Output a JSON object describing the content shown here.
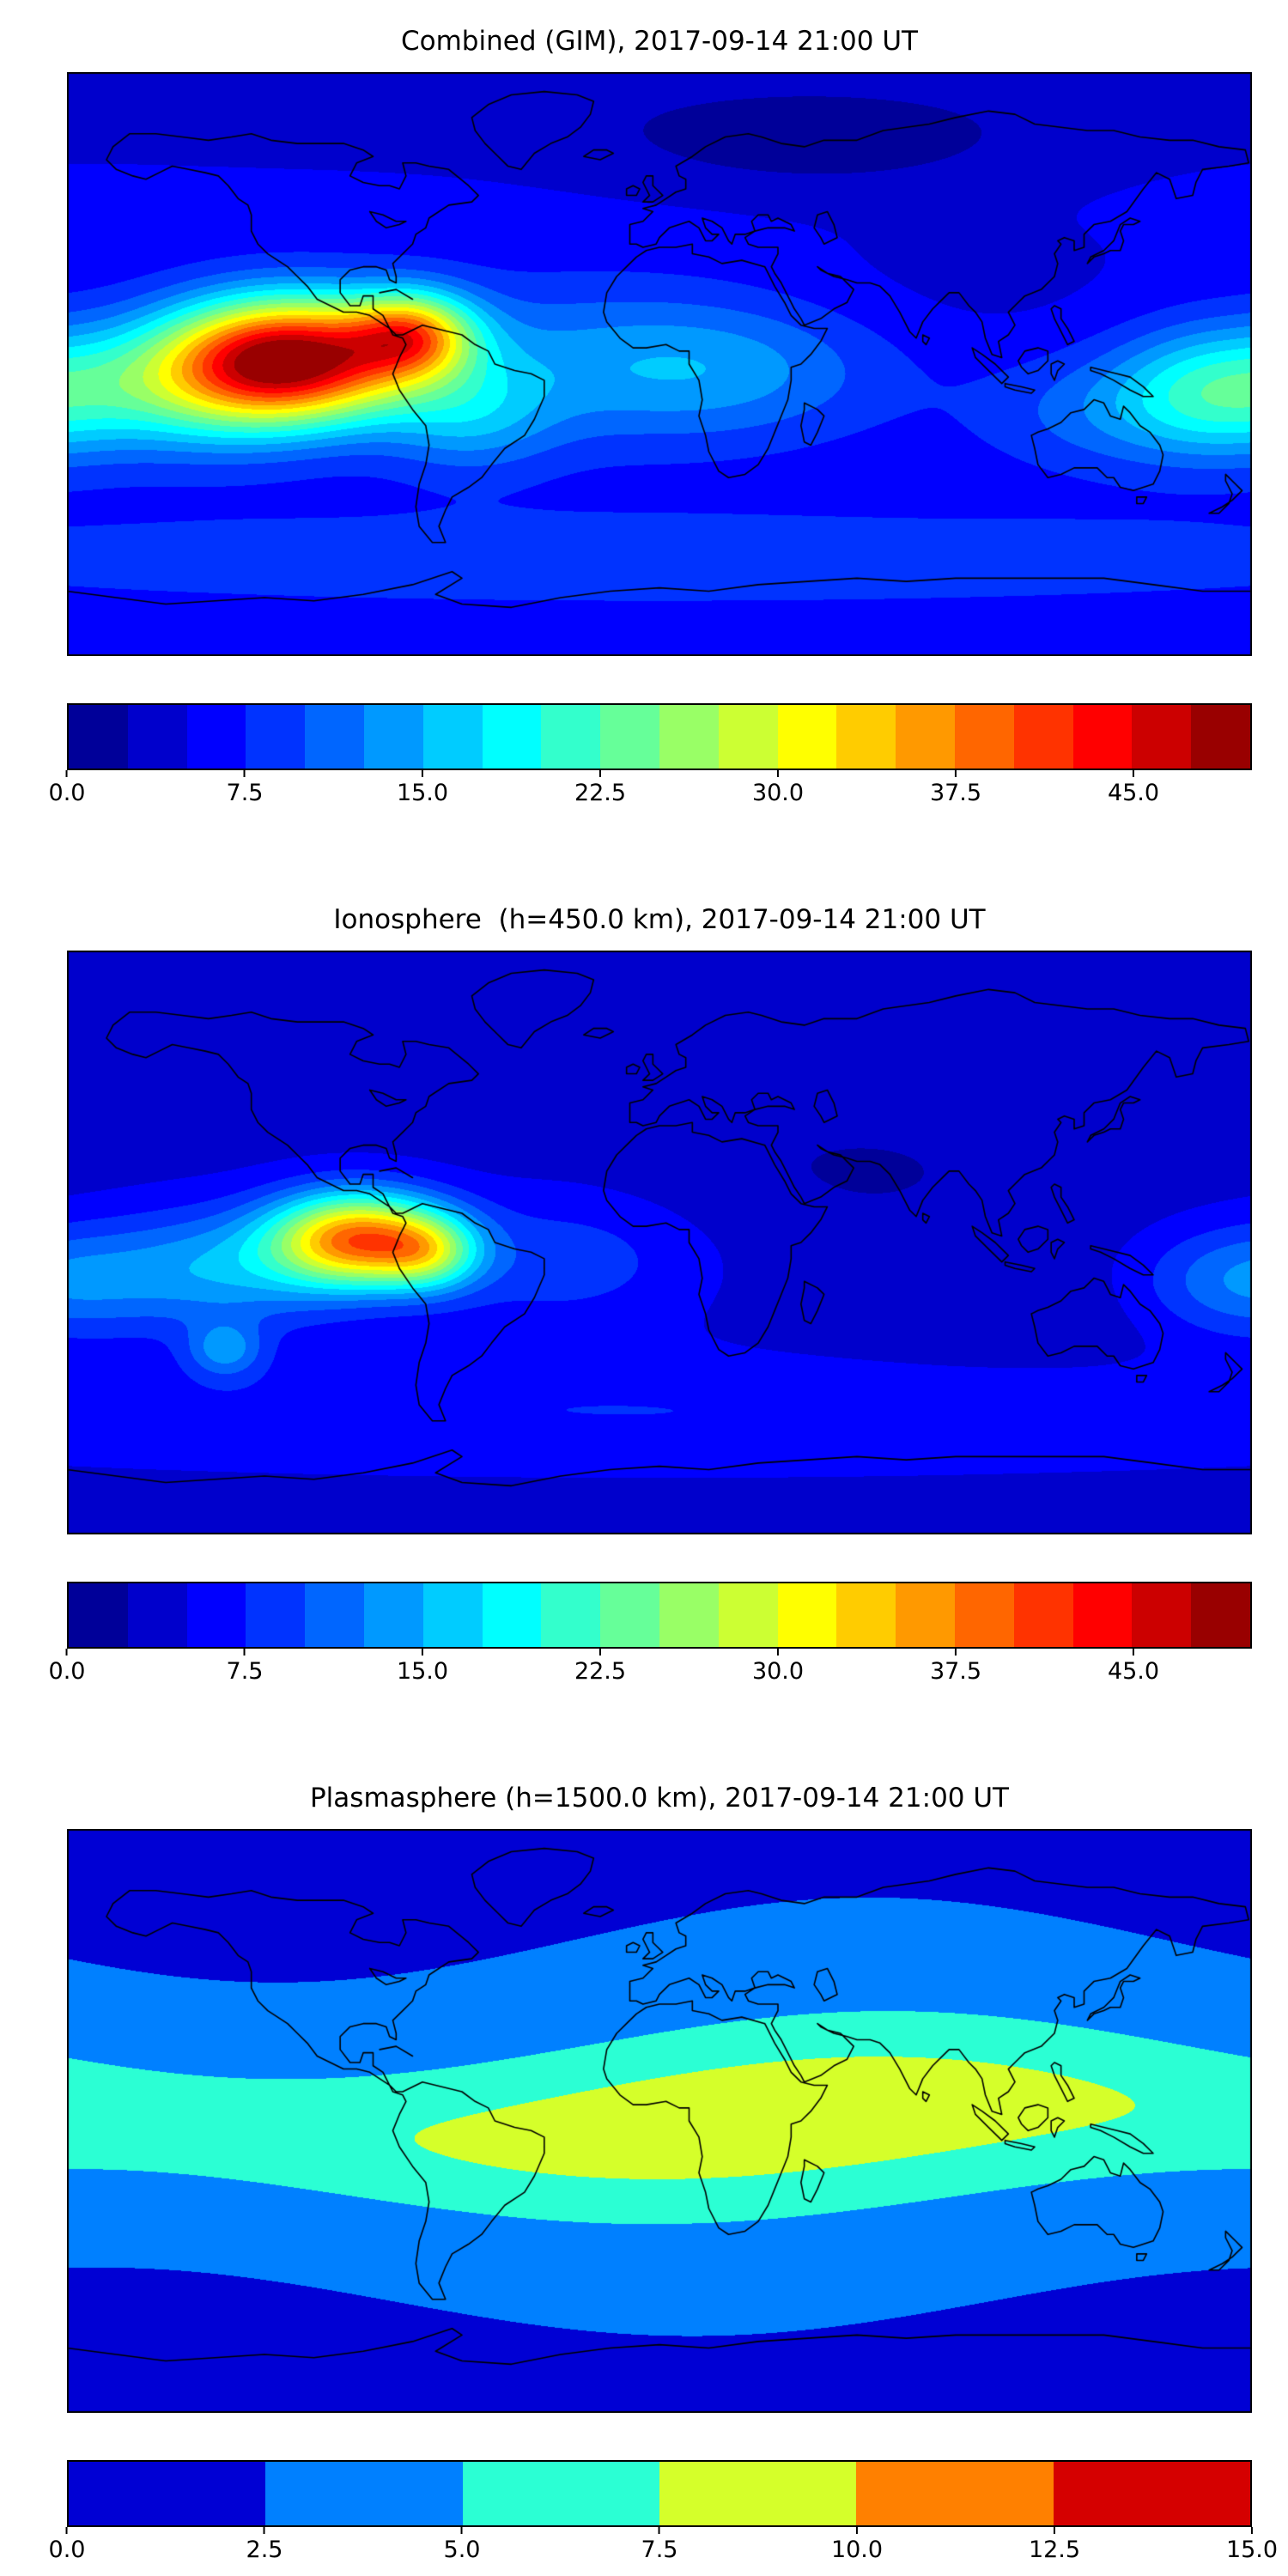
{
  "page": {
    "background": "#ffffff",
    "text_color": "#000000"
  },
  "chart_data": [
    {
      "type": "filled-contour-map",
      "title": "Combined (GIM), 2017-09-14 21:00 UT",
      "datetime": "2017-09-14 21:00 UT",
      "layer": "Combined (GIM)",
      "colormap": "jet",
      "projection": "equirectangular",
      "lon_range": [
        -180,
        180
      ],
      "lat_range": [
        -90,
        90
      ],
      "coastlines": true,
      "colorbar": {
        "orientation": "horizontal",
        "vmin": 0,
        "vmax": 50,
        "bins": 20,
        "level_step": 2.5,
        "tick_values": [
          0,
          7.5,
          15,
          22.5,
          30,
          37.5,
          45
        ],
        "tick_labels": [
          "0.0",
          "7.5",
          "15.0",
          "22.5",
          "30.0",
          "37.5",
          "45.0"
        ]
      },
      "description": "Global combined TEC map. Peak value ~48-50 (dark red) over the eastern equatorial Pacific near 112W 2N, orange-red secondary near 75W 9N over NW South America, yellow-green plume spanning roughly 160W-60W around the equator, cyan patches over the equatorial Atlantic and Africa, green enhancement at the far western Pacific edge, dark blue minimum over high northern latitudes.",
      "field": {
        "base": 5.5,
        "blobs": [
          {
            "lon": -112,
            "lat": 2,
            "amp": 40,
            "slon": 26,
            "slat": 13
          },
          {
            "lon": -75,
            "lat": 9,
            "amp": 22,
            "slon": 13,
            "slat": 9
          },
          {
            "lon": -140,
            "lat": -8,
            "amp": 12,
            "slon": 28,
            "slat": 14
          },
          {
            "lon": -58,
            "lat": -16,
            "amp": 7,
            "slon": 18,
            "slat": 12
          },
          {
            "lon": -30,
            "lat": 0,
            "amp": 6,
            "slon": 45,
            "slat": 18
          },
          {
            "lon": 22,
            "lat": -2,
            "amp": 6,
            "slon": 35,
            "slat": 15
          },
          {
            "lon": 170,
            "lat": -8,
            "amp": 13,
            "slon": 22,
            "slat": 14
          },
          {
            "lon": 135,
            "lat": -15,
            "amp": 5,
            "slon": 28,
            "slat": 13
          },
          {
            "lon": 48,
            "lat": 68,
            "amp": -3.5,
            "slon": 45,
            "slat": 11
          },
          {
            "lon": 0,
            "lat": -60,
            "amp": 4,
            "slon": 200,
            "slat": 11
          },
          {
            "lon": 0,
            "lat": 80,
            "amp": -1.6,
            "slon": 200,
            "slat": 14
          },
          {
            "lon": 90,
            "lat": 25,
            "amp": -1.2,
            "slon": 40,
            "slat": 16
          }
        ]
      }
    },
    {
      "type": "filled-contour-map",
      "title": "Ionosphere  (h=450.0 km), 2017-09-14 21:00 UT",
      "datetime": "2017-09-14 21:00 UT",
      "layer": "Ionosphere (h=450.0 km)",
      "colormap": "jet",
      "projection": "equirectangular",
      "lon_range": [
        -180,
        180
      ],
      "lat_range": [
        -90,
        90
      ],
      "coastlines": true,
      "colorbar": {
        "orientation": "horizontal",
        "vmin": 0,
        "vmax": 50,
        "bins": 20,
        "level_step": 2.5,
        "tick_values": [
          0,
          7.5,
          15,
          22.5,
          30,
          37.5,
          45
        ],
        "tick_labels": [
          "0.0",
          "7.5",
          "15.0",
          "22.5",
          "30.0",
          "37.5",
          "45.0"
        ]
      },
      "description": "Ionospheric TEC at 450 km. Compact orange-red maximum ~36-39 near 92W on the equator just west of South America with yellow ring, cyan-green halo extending west across the equatorial Pacific, small isolated cyan spot near 132W 33S, very dark blue (night-side) minimum ~2-4 over Asia and the Indian Ocean, slightly lighter blue band along southern mid-latitudes.",
      "field": {
        "base": 4,
        "blobs": [
          {
            "lon": -92,
            "lat": 1,
            "amp": 32,
            "slon": 18,
            "slat": 10
          },
          {
            "lon": -70,
            "lat": -3,
            "amp": 14,
            "slon": 11,
            "slat": 8
          },
          {
            "lon": -133,
            "lat": -8,
            "amp": 10,
            "slon": 26,
            "slat": 13
          },
          {
            "lon": 176,
            "lat": -12,
            "amp": 8,
            "slon": 22,
            "slat": 12
          },
          {
            "lon": -30,
            "lat": -5,
            "amp": 5,
            "slon": 32,
            "slat": 15
          },
          {
            "lon": -132,
            "lat": -33,
            "amp": 8,
            "slon": 8,
            "slat": 6
          },
          {
            "lon": 0,
            "lat": -52,
            "amp": 3.5,
            "slon": 200,
            "slat": 13
          },
          {
            "lon": 60,
            "lat": 22,
            "amp": -1.6,
            "slon": 55,
            "slat": 20
          },
          {
            "lon": 105,
            "lat": -25,
            "amp": -1.2,
            "slon": 45,
            "slat": 15
          },
          {
            "lon": 0,
            "lat": 82,
            "amp": -1.2,
            "slon": 200,
            "slat": 14
          }
        ]
      }
    },
    {
      "type": "filled-contour-map",
      "title": "Plasmasphere (h=1500.0 km), 2017-09-14 21:00 UT",
      "datetime": "2017-09-14 21:00 UT",
      "layer": "Plasmasphere (h=1500.0 km)",
      "colormap": "jet",
      "projection": "equirectangular",
      "lon_range": [
        -180,
        180
      ],
      "lat_range": [
        -90,
        90
      ],
      "coastlines": true,
      "colorbar": {
        "orientation": "horizontal",
        "vmin": 0,
        "vmax": 15,
        "bins": 6,
        "level_step": 2.5,
        "tick_values": [
          0,
          2.5,
          5,
          7.5,
          10,
          12.5,
          15
        ],
        "tick_labels": [
          "0.0",
          "2.5",
          "5.0",
          "7.5",
          "10.0",
          "12.5",
          "15.0"
        ]
      },
      "description": "Plasmaspheric TEC at 1500 km. Smooth latitudinal bands: yellow-green equatorial band (~7.5-10) from about 75W across Africa and Asia to ~145E, dipping south over South America and north over Asia; surrounding cyan band (5-7.5) spanning all longitudes; blue band (2.5-5) at mid-latitudes; dark blue (<2.5) poleward of about 50-60 degrees with deep lobes over the north and south Pacific.",
      "field": {
        "base": 1.2,
        "band": {
          "amp0": 4.0,
          "amp1": 1.5,
          "ampPhase": 35,
          "width0": 16,
          "width1": 3,
          "widthPhase": 40,
          "centerAmp": 5.5,
          "centerPhase": 25,
          "wideAmp": 2.8,
          "wideMult": 2.8
        },
        "blobs": []
      }
    }
  ]
}
